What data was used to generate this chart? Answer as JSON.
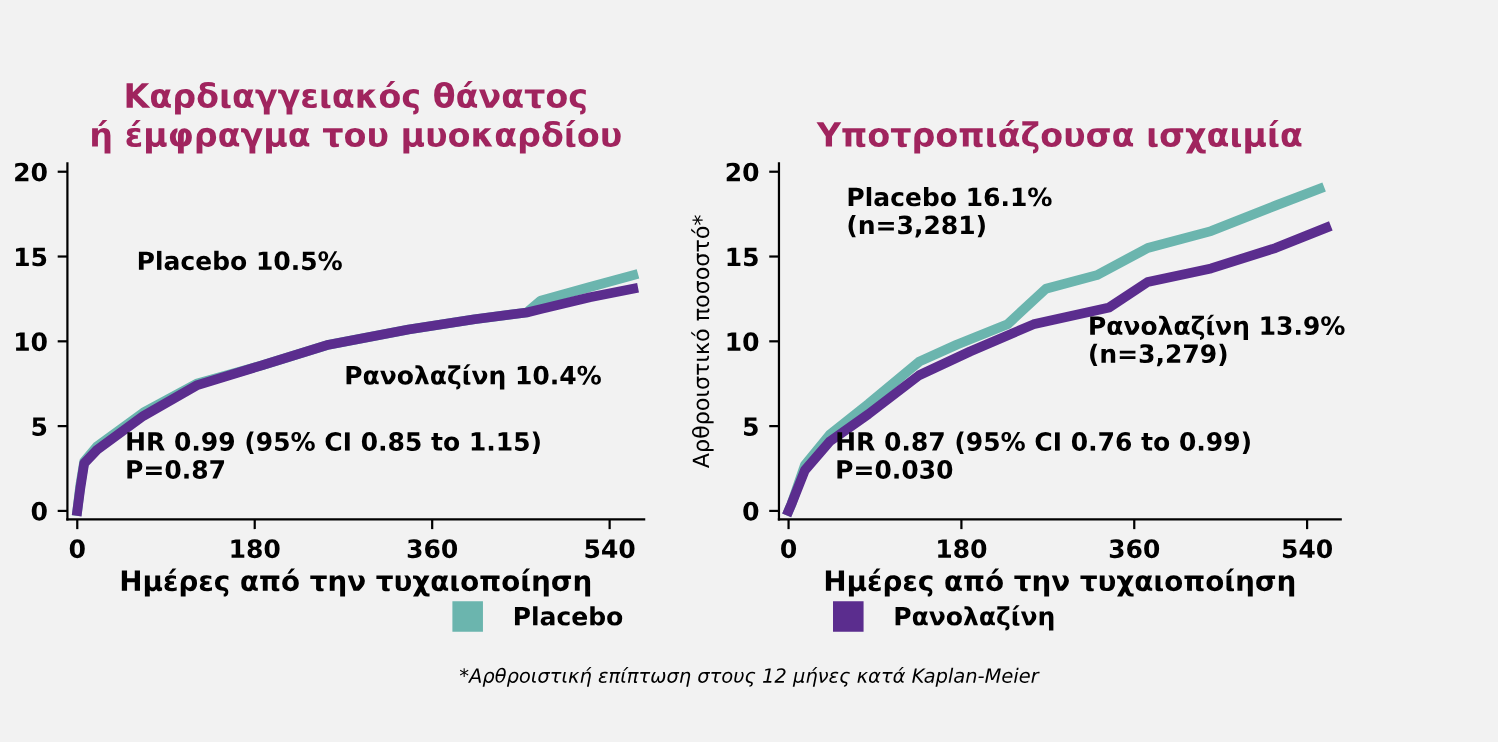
{
  "chart_data": [
    {
      "type": "line",
      "title": "Καρδιαγγειακός θάνατος\nή έμφραγμα του μυοκαρδίου",
      "xlabel": "Ημέρες από την τυχαιοποίηση",
      "xlim": [
        -10,
        575
      ],
      "xticks": [
        0,
        180,
        360,
        540
      ],
      "ylim": [
        -0.5,
        20.5
      ],
      "yticks": [
        0,
        5,
        10,
        15,
        20
      ],
      "grid": false,
      "line_style": "solid",
      "marker": "none",
      "series": [
        {
          "name": "Placebo",
          "color": "#6bb5ae",
          "x": [
            0,
            3,
            7,
            20,
            67,
            121,
            188,
            255,
            336,
            403,
            456,
            470,
            520,
            564
          ],
          "values": [
            0,
            1.5,
            2.9,
            3.8,
            5.8,
            7.5,
            8.6,
            9.8,
            10.7,
            11.3,
            11.7,
            12.4,
            13.2,
            13.9
          ]
        },
        {
          "name": "Ρανολαζίνη",
          "color": "#5b2d8e",
          "x": [
            0,
            3,
            7,
            20,
            67,
            121,
            188,
            255,
            336,
            403,
            456,
            470,
            520,
            564
          ],
          "values": [
            0,
            1.3,
            2.8,
            3.6,
            5.6,
            7.4,
            8.6,
            9.8,
            10.7,
            11.3,
            11.7,
            11.9,
            12.6,
            13.1
          ]
        }
      ],
      "legend": "bottom",
      "annotations": [
        "10.5%",
        "10.4%",
        "HR 0.99 (95% CI 0.85 to 1.15)\nP=0.87"
      ]
    },
    {
      "type": "line",
      "title": "Υποτροπιάζουσα ισχαιμία",
      "xlabel": "Ημέρες από την τυχαιοποίηση",
      "ylabel": "Αρθροιστικό ποσοστό*",
      "xlim": [
        -10,
        575
      ],
      "xticks": [
        0,
        180,
        360,
        540
      ],
      "ylim": [
        -0.5,
        20.5
      ],
      "yticks": [
        0,
        5,
        10,
        15,
        20
      ],
      "grid": false,
      "line_style": "solid",
      "marker": "none",
      "legend": "bottom",
      "series": [
        {
          "name": "Placebo",
          "color": "#6bb5ae",
          "x": [
            0,
            3,
            17,
            43,
            83,
            136,
            175,
            228,
            268,
            321,
            374,
            440,
            507,
            553
          ],
          "values": [
            0,
            0.4,
            2.7,
            4.5,
            6.3,
            8.8,
            9.8,
            11.0,
            13.1,
            13.9,
            15.5,
            16.5,
            18.0,
            19.0
          ]
        },
        {
          "name": "Ρανολαζίνη",
          "color": "#5b2d8e",
          "x": [
            0,
            3,
            17,
            43,
            83,
            136,
            189,
            255,
            334,
            374,
            440,
            507,
            560
          ],
          "values": [
            0,
            0.4,
            2.4,
            4.1,
            5.7,
            8.0,
            9.4,
            11.0,
            12.0,
            13.5,
            14.3,
            15.5,
            16.7
          ]
        }
      ],
      "annotations": [
        "16.1%\n(n=3,281)",
        "13.9%\n(n=3,279)",
        "HR 0.87 (95% CI 0.76 to 0.99)\nP=0.030",
        "*Αρθροιστική επίπτωση στους 12 μήνες κατά Kaplan-Meier"
      ]
    }
  ]
}
